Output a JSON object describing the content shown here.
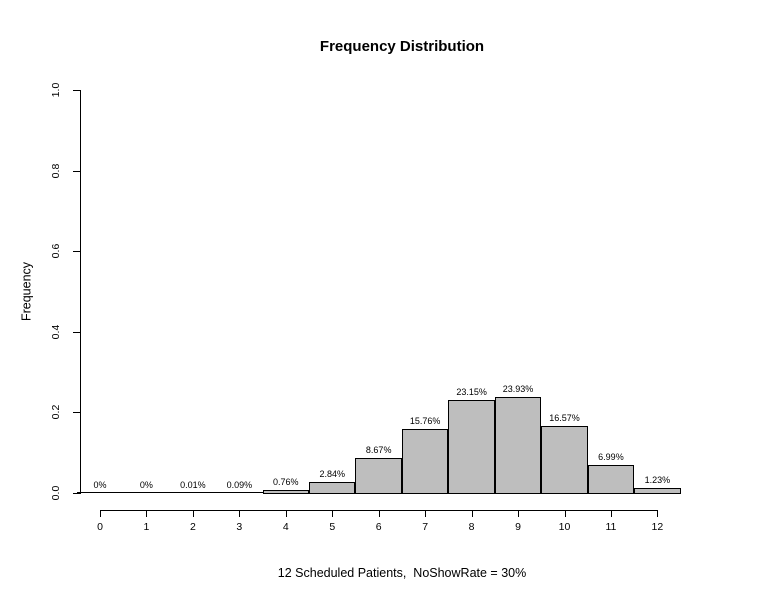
{
  "chart_data": {
    "type": "bar",
    "title": "Frequency Distribution",
    "xlabel": "12 Scheduled Patients,  NoShowRate = 30%",
    "ylabel": "Frequency",
    "categories": [
      "0",
      "1",
      "2",
      "3",
      "4",
      "5",
      "6",
      "7",
      "8",
      "9",
      "10",
      "11",
      "12"
    ],
    "values": [
      0.0,
      0.0,
      0.0001,
      0.0009,
      0.0076,
      0.0284,
      0.0867,
      0.1576,
      0.2315,
      0.2393,
      0.1657,
      0.0699,
      0.0123
    ],
    "bar_labels": [
      "0%",
      "0%",
      "0.01%",
      "0.09%",
      "0.76%",
      "2.84%",
      "8.67%",
      "15.76%",
      "23.15%",
      "23.93%",
      "16.57%",
      "6.99%",
      "1.23%"
    ],
    "ylim": [
      0.0,
      1.0
    ],
    "yticks": [
      0.0,
      0.2,
      0.4,
      0.6,
      0.8,
      1.0
    ],
    "ytick_labels": [
      "0.0",
      "0.2",
      "0.4",
      "0.6",
      "0.8",
      "1.0"
    ],
    "grid": "off",
    "legend": "none",
    "bar_fill": "#bebebe",
    "bar_border": "#000000",
    "background": "#ffffff",
    "text_color": "#000000"
  }
}
